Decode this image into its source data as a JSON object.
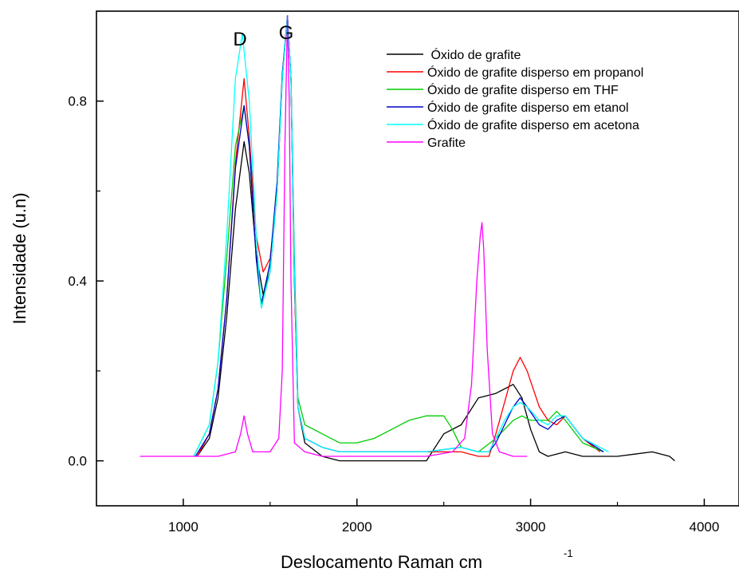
{
  "chart_data": {
    "type": "line",
    "xlabel": "Deslocamento Raman cm",
    "xlabel_superscript": "-1",
    "ylabel": "Intensidade (u.n)",
    "xlim": [
      500,
      4200
    ],
    "ylim": [
      -0.1,
      1.0
    ],
    "xticks": [
      "1000",
      "2000",
      "3000",
      "4000"
    ],
    "yticks": [
      "0.0",
      "0.4",
      "0.8"
    ],
    "peak_labels": [
      "D",
      "G"
    ],
    "grid": false,
    "legend_position": "top-right",
    "series": [
      {
        "name": " Óxido de grafite",
        "color": "#000000",
        "x": [
          1080,
          1150,
          1200,
          1250,
          1300,
          1350,
          1380,
          1420,
          1460,
          1500,
          1540,
          1570,
          1600,
          1620,
          1640,
          1660,
          1700,
          1800,
          1900,
          2000,
          2400,
          2500,
          2600,
          2700,
          2800,
          2900,
          2950,
          3000,
          3050,
          3100,
          3200,
          3300,
          3400,
          3500,
          3600,
          3700,
          3800,
          3830
        ],
        "y": [
          0.01,
          0.05,
          0.14,
          0.32,
          0.56,
          0.71,
          0.64,
          0.46,
          0.37,
          0.42,
          0.6,
          0.85,
          0.99,
          0.85,
          0.4,
          0.12,
          0.04,
          0.01,
          0.0,
          0.0,
          0.0,
          0.06,
          0.08,
          0.14,
          0.15,
          0.17,
          0.14,
          0.07,
          0.02,
          0.01,
          0.02,
          0.01,
          0.01,
          0.01,
          0.015,
          0.02,
          0.01,
          0.0
        ]
      },
      {
        "name": "Óxido de grafite disperso em propanol",
        "color": "#ff0000",
        "x": [
          1080,
          1150,
          1200,
          1250,
          1300,
          1350,
          1380,
          1420,
          1460,
          1500,
          1540,
          1570,
          1600,
          1620,
          1640,
          1660,
          1700,
          1800,
          1900,
          2000,
          2200,
          2400,
          2600,
          2700,
          2760,
          2800,
          2850,
          2900,
          2940,
          2980,
          3050,
          3100,
          3150,
          3200,
          3300,
          3400
        ],
        "y": [
          0.01,
          0.06,
          0.16,
          0.36,
          0.66,
          0.85,
          0.72,
          0.5,
          0.42,
          0.45,
          0.6,
          0.85,
          0.99,
          0.85,
          0.4,
          0.12,
          0.05,
          0.03,
          0.02,
          0.02,
          0.02,
          0.02,
          0.02,
          0.01,
          0.01,
          0.06,
          0.13,
          0.2,
          0.23,
          0.2,
          0.12,
          0.09,
          0.08,
          0.1,
          0.05,
          0.02
        ]
      },
      {
        "name": "Óxido de grafite disperso em THF",
        "color": "#00cc00",
        "x": [
          1060,
          1150,
          1200,
          1250,
          1300,
          1350,
          1380,
          1420,
          1450,
          1500,
          1540,
          1570,
          1600,
          1620,
          1640,
          1660,
          1700,
          1800,
          1900,
          2000,
          2100,
          2200,
          2300,
          2400,
          2500,
          2550,
          2600,
          2700,
          2800,
          2900,
          2950,
          3000,
          3100,
          3150,
          3200,
          3300,
          3420
        ],
        "y": [
          0.01,
          0.08,
          0.22,
          0.45,
          0.7,
          0.79,
          0.7,
          0.45,
          0.34,
          0.44,
          0.62,
          0.86,
          0.99,
          0.85,
          0.45,
          0.14,
          0.08,
          0.06,
          0.04,
          0.04,
          0.05,
          0.07,
          0.09,
          0.1,
          0.1,
          0.07,
          0.03,
          0.02,
          0.05,
          0.09,
          0.1,
          0.09,
          0.09,
          0.11,
          0.09,
          0.04,
          0.02
        ]
      },
      {
        "name": "Óxido de grafite disperso em etanol",
        "color": "#0000cc",
        "x": [
          1070,
          1150,
          1200,
          1250,
          1300,
          1350,
          1380,
          1420,
          1450,
          1500,
          1540,
          1570,
          1600,
          1620,
          1640,
          1660,
          1700,
          1800,
          1900,
          2000,
          2200,
          2400,
          2600,
          2700,
          2760,
          2800,
          2850,
          2900,
          2940,
          2980,
          3050,
          3100,
          3150,
          3200,
          3300,
          3420
        ],
        "y": [
          0.01,
          0.06,
          0.16,
          0.36,
          0.65,
          0.79,
          0.7,
          0.45,
          0.35,
          0.44,
          0.62,
          0.86,
          0.99,
          0.85,
          0.42,
          0.12,
          0.05,
          0.03,
          0.02,
          0.02,
          0.02,
          0.02,
          0.03,
          0.02,
          0.02,
          0.04,
          0.08,
          0.12,
          0.14,
          0.12,
          0.08,
          0.07,
          0.09,
          0.1,
          0.05,
          0.02
        ]
      },
      {
        "name": "Óxido de grafite disperso em acetona",
        "color": "#00ffff",
        "x": [
          1060,
          1150,
          1200,
          1250,
          1300,
          1340,
          1380,
          1420,
          1450,
          1500,
          1540,
          1570,
          1600,
          1620,
          1640,
          1660,
          1700,
          1800,
          1900,
          2000,
          2200,
          2400,
          2600,
          2700,
          2760,
          2800,
          2850,
          2900,
          2940,
          2980,
          3050,
          3100,
          3150,
          3200,
          3300,
          3450
        ],
        "y": [
          0.01,
          0.08,
          0.22,
          0.5,
          0.85,
          0.95,
          0.8,
          0.5,
          0.34,
          0.42,
          0.6,
          0.85,
          0.99,
          0.85,
          0.42,
          0.12,
          0.05,
          0.03,
          0.02,
          0.02,
          0.02,
          0.02,
          0.03,
          0.02,
          0.02,
          0.05,
          0.09,
          0.12,
          0.13,
          0.12,
          0.09,
          0.08,
          0.1,
          0.1,
          0.05,
          0.02
        ]
      },
      {
        "name": "Grafite",
        "color": "#ff00ff",
        "x": [
          750,
          900,
          1000,
          1100,
          1200,
          1300,
          1330,
          1350,
          1370,
          1400,
          1500,
          1550,
          1570,
          1585,
          1600,
          1610,
          1620,
          1640,
          1700,
          1800,
          2000,
          2200,
          2400,
          2550,
          2620,
          2660,
          2690,
          2710,
          2720,
          2730,
          2750,
          2780,
          2820,
          2900,
          2980
        ],
        "y": [
          0.01,
          0.01,
          0.01,
          0.01,
          0.01,
          0.02,
          0.06,
          0.1,
          0.06,
          0.02,
          0.02,
          0.05,
          0.2,
          0.7,
          0.99,
          0.8,
          0.4,
          0.04,
          0.02,
          0.01,
          0.01,
          0.01,
          0.01,
          0.02,
          0.05,
          0.17,
          0.4,
          0.5,
          0.53,
          0.47,
          0.25,
          0.06,
          0.02,
          0.01,
          0.01
        ]
      }
    ]
  }
}
